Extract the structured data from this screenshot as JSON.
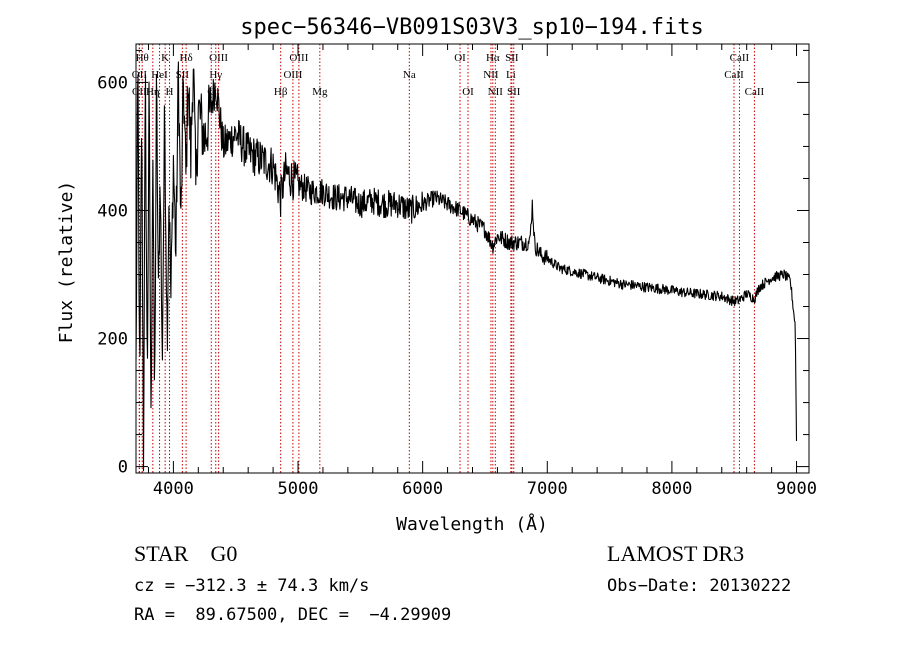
{
  "colors": {
    "spectrum": "#000000",
    "line_marker": "#cc0000",
    "axes": "#000000",
    "background": "#ffffff"
  },
  "chart_data": {
    "type": "line",
    "title": "spec−56346−VB091S03V3_sp10−194.fits",
    "xlabel": "Wavelength (Å)",
    "ylabel": "Flux (relative)",
    "xlim": [
      3700,
      9100
    ],
    "ylim": [
      -10,
      660
    ],
    "xticks": [
      4000,
      5000,
      6000,
      7000,
      8000,
      9000
    ],
    "xtick_labels": [
      "4000",
      "5000",
      "6000",
      "7000",
      "8000",
      "9000"
    ],
    "yticks": [
      0,
      200,
      400,
      600
    ],
    "ytick_labels": [
      "0",
      "200",
      "400",
      "600"
    ],
    "xminor_step": 200,
    "yminor_step": 50,
    "grid": false,
    "series": [
      {
        "name": "spectrum",
        "anchors": [
          [
            3700,
            150
          ],
          [
            3715,
            630
          ],
          [
            3730,
            90
          ],
          [
            3745,
            560
          ],
          [
            3760,
            20
          ],
          [
            3775,
            610
          ],
          [
            3790,
            120
          ],
          [
            3805,
            590
          ],
          [
            3820,
            60
          ],
          [
            3835,
            520
          ],
          [
            3850,
            80
          ],
          [
            3865,
            610
          ],
          [
            3880,
            260
          ],
          [
            3895,
            470
          ],
          [
            3910,
            150
          ],
          [
            3930,
            560
          ],
          [
            3950,
            200
          ],
          [
            3965,
            430
          ],
          [
            3980,
            260
          ],
          [
            4000,
            480
          ],
          [
            4020,
            330
          ],
          [
            4040,
            620
          ],
          [
            4060,
            370
          ],
          [
            4080,
            600
          ],
          [
            4100,
            450
          ],
          [
            4120,
            610
          ],
          [
            4140,
            480
          ],
          [
            4160,
            640
          ],
          [
            4180,
            430
          ],
          [
            4200,
            560
          ],
          [
            4250,
            510
          ],
          [
            4300,
            560
          ],
          [
            4340,
            600
          ],
          [
            4400,
            500
          ],
          [
            4500,
            520
          ],
          [
            4600,
            490
          ],
          [
            4700,
            480
          ],
          [
            4800,
            470
          ],
          [
            4860,
            420
          ],
          [
            4900,
            460
          ],
          [
            5000,
            440
          ],
          [
            5100,
            430
          ],
          [
            5200,
            430
          ],
          [
            5300,
            420
          ],
          [
            5400,
            420
          ],
          [
            5500,
            410
          ],
          [
            5600,
            415
          ],
          [
            5700,
            410
          ],
          [
            5800,
            410
          ],
          [
            5900,
            400
          ],
          [
            6000,
            410
          ],
          [
            6100,
            420
          ],
          [
            6200,
            410
          ],
          [
            6300,
            400
          ],
          [
            6400,
            385
          ],
          [
            6500,
            370
          ],
          [
            6563,
            345
          ],
          [
            6600,
            360
          ],
          [
            6700,
            350
          ],
          [
            6800,
            350
          ],
          [
            6860,
            350
          ],
          [
            6880,
            410
          ],
          [
            6900,
            345
          ],
          [
            6950,
            330
          ],
          [
            7000,
            325
          ],
          [
            7100,
            310
          ],
          [
            7200,
            305
          ],
          [
            7300,
            300
          ],
          [
            7400,
            295
          ],
          [
            7500,
            290
          ],
          [
            7600,
            285
          ],
          [
            7700,
            283
          ],
          [
            7800,
            280
          ],
          [
            7900,
            278
          ],
          [
            8000,
            275
          ],
          [
            8100,
            272
          ],
          [
            8200,
            270
          ],
          [
            8300,
            268
          ],
          [
            8400,
            266
          ],
          [
            8498,
            258
          ],
          [
            8542,
            260
          ],
          [
            8600,
            270
          ],
          [
            8662,
            262
          ],
          [
            8700,
            280
          ],
          [
            8800,
            295
          ],
          [
            8900,
            300
          ],
          [
            8950,
            290
          ],
          [
            8990,
            220
          ],
          [
            9000,
            40
          ]
        ]
      }
    ],
    "line_markers": [
      {
        "label": "CII",
        "wavelength": 3727,
        "row": 3
      },
      {
        "label": "OII",
        "wavelength": 3727,
        "row": 2
      },
      {
        "label": "Hθ",
        "wavelength": 3750,
        "row": 1
      },
      {
        "label": "Hη",
        "wavelength": 3835,
        "row": 3
      },
      {
        "label": "HeI",
        "wavelength": 3889,
        "row": 2
      },
      {
        "label": "K",
        "wavelength": 3934,
        "row": 1
      },
      {
        "label": "SII",
        "wavelength": 4072,
        "row": 2
      },
      {
        "label": "H",
        "wavelength": 3969,
        "row": 3
      },
      {
        "label": "Hδ",
        "wavelength": 4102,
        "row": 1
      },
      {
        "label": "OIII",
        "wavelength": 4363,
        "row": 1
      },
      {
        "label": "Hγ",
        "wavelength": 4340,
        "row": 2
      },
      {
        "label": "G",
        "wavelength": 4304,
        "row": 3
      },
      {
        "label": "Hβ",
        "wavelength": 4861,
        "row": 3
      },
      {
        "label": "OIII",
        "wavelength": 5007,
        "row": 1
      },
      {
        "label": "OIII",
        "wavelength": 4959,
        "row": 2
      },
      {
        "label": "Mg",
        "wavelength": 5175,
        "row": 3
      },
      {
        "label": "Na",
        "wavelength": 5893,
        "row": 2
      },
      {
        "label": "OI",
        "wavelength": 6300,
        "row": 1
      },
      {
        "label": "OI",
        "wavelength": 6364,
        "row": 3
      },
      {
        "label": "Hα",
        "wavelength": 6563,
        "row": 1
      },
      {
        "label": "NII",
        "wavelength": 6548,
        "row": 2
      },
      {
        "label": "NII",
        "wavelength": 6583,
        "row": 3
      },
      {
        "label": "SII",
        "wavelength": 6716,
        "row": 1
      },
      {
        "label": "Li",
        "wavelength": 6708,
        "row": 2
      },
      {
        "label": "SII",
        "wavelength": 6731,
        "row": 3
      },
      {
        "label": "CaII",
        "wavelength": 8542,
        "row": 1
      },
      {
        "label": "CaII",
        "wavelength": 8498,
        "row": 2
      },
      {
        "label": "CaII",
        "wavelength": 8662,
        "row": 3
      }
    ]
  },
  "info": {
    "class_line": "STAR    G0",
    "cz_line": "cz = −312.3 ± 74.3 km/s",
    "coords_line": "RA =  89.67500, DEC =  −4.29909",
    "survey": "LAMOST DR3",
    "obs_date": "Obs−Date: 20130222"
  }
}
